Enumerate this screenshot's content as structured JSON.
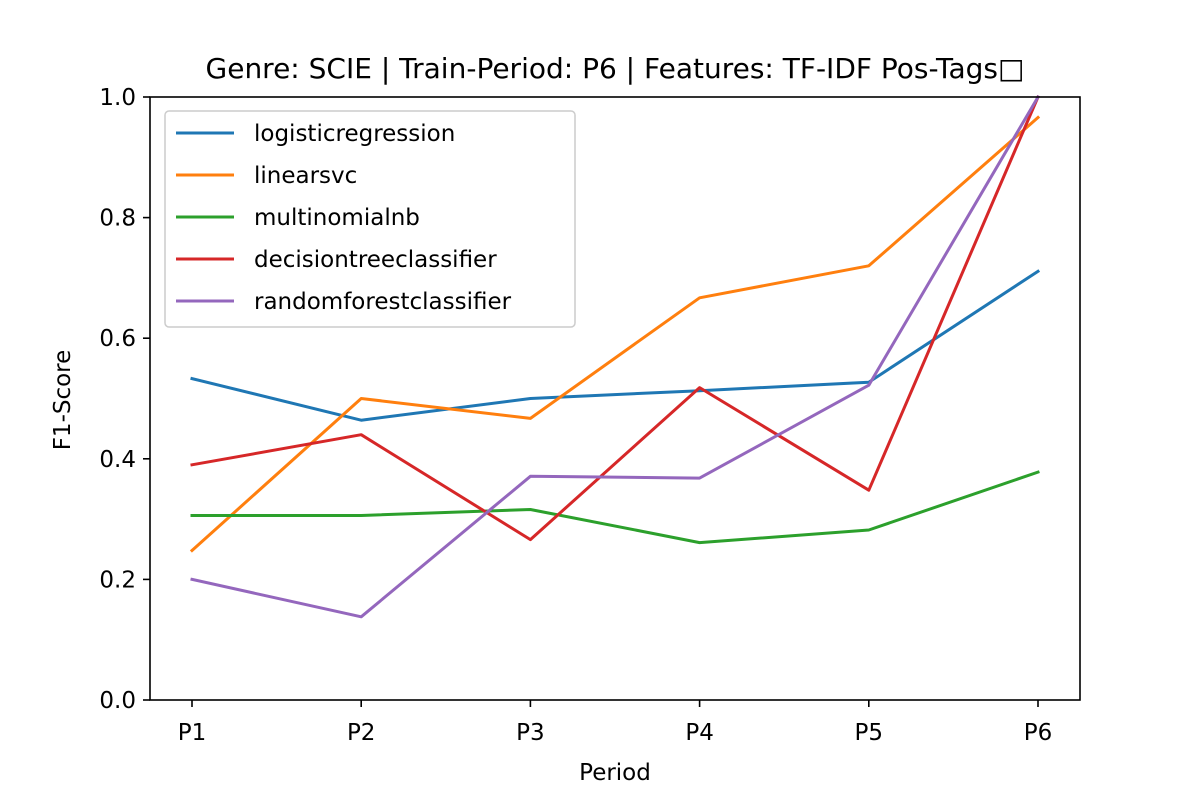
{
  "chart_data": {
    "type": "line",
    "title": "Genre: SCIE | Train-Period: P6 | Features: TF-IDF Pos-Tags□",
    "xlabel": "Period",
    "ylabel": "F1-Score",
    "categories": [
      "P1",
      "P2",
      "P3",
      "P4",
      "P5",
      "P6"
    ],
    "ylim": [
      0.0,
      1.0
    ],
    "yticks": [
      0.0,
      0.2,
      0.4,
      0.6,
      0.8,
      1.0
    ],
    "ytick_labels": [
      "0.0",
      "0.2",
      "0.4",
      "0.6",
      "0.8",
      "1.0"
    ],
    "grid": false,
    "legend_position": "top-left",
    "series": [
      {
        "name": "logisticregression",
        "color": "#1f77b4",
        "values": [
          0.533,
          0.464,
          0.5,
          0.513,
          0.527,
          0.711
        ]
      },
      {
        "name": "linearsvc",
        "color": "#ff7f0e",
        "values": [
          0.248,
          0.5,
          0.467,
          0.667,
          0.72,
          0.966
        ]
      },
      {
        "name": "multinomialnb",
        "color": "#2ca02c",
        "values": [
          0.306,
          0.306,
          0.316,
          0.261,
          0.282,
          0.378
        ]
      },
      {
        "name": "decisiontreeclassifier",
        "color": "#d62728",
        "values": [
          0.39,
          0.44,
          0.266,
          0.518,
          0.348,
          1.0
        ]
      },
      {
        "name": "randomforestclassifier",
        "color": "#9467bd",
        "values": [
          0.2,
          0.138,
          0.371,
          0.368,
          0.522,
          1.0
        ]
      }
    ]
  }
}
